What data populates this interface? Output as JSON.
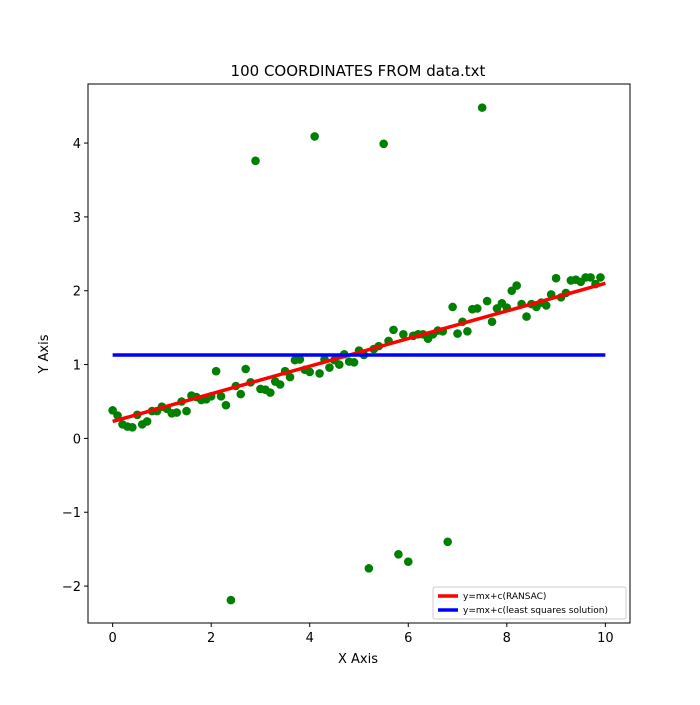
{
  "chart_data": {
    "type": "scatter",
    "title": "100 COORDINATES FROM data.txt",
    "xlabel": "X Axis",
    "ylabel": "Y Axis",
    "xlim": [
      -0.5,
      10.5
    ],
    "ylim": [
      -2.5,
      4.8
    ],
    "x_ticks": [
      0,
      2,
      4,
      6,
      8,
      10
    ],
    "y_ticks": [
      -2,
      -1,
      0,
      1,
      2,
      3,
      4
    ],
    "x_tick_labels": [
      "0",
      "2",
      "4",
      "6",
      "8",
      "10"
    ],
    "y_tick_labels": [
      "−2",
      "−1",
      "0",
      "1",
      "2",
      "3",
      "4"
    ],
    "grid": false,
    "legend_position": "lower-right",
    "point_color": "#008000",
    "points": [
      [
        0.0,
        0.38
      ],
      [
        0.1,
        0.31
      ],
      [
        0.2,
        0.19
      ],
      [
        0.3,
        0.16
      ],
      [
        0.4,
        0.15
      ],
      [
        0.5,
        0.32
      ],
      [
        0.6,
        0.19
      ],
      [
        0.7,
        0.23
      ],
      [
        0.8,
        0.37
      ],
      [
        0.9,
        0.37
      ],
      [
        1.0,
        0.43
      ],
      [
        1.1,
        0.4
      ],
      [
        1.2,
        0.34
      ],
      [
        1.3,
        0.35
      ],
      [
        1.4,
        0.5
      ],
      [
        1.5,
        0.37
      ],
      [
        1.6,
        0.58
      ],
      [
        1.7,
        0.56
      ],
      [
        1.8,
        0.52
      ],
      [
        1.9,
        0.53
      ],
      [
        2.0,
        0.57
      ],
      [
        2.1,
        0.91
      ],
      [
        2.2,
        0.57
      ],
      [
        2.3,
        0.45
      ],
      [
        2.4,
        -2.19
      ],
      [
        2.5,
        0.71
      ],
      [
        2.6,
        0.6
      ],
      [
        2.7,
        0.94
      ],
      [
        2.8,
        0.76
      ],
      [
        2.9,
        3.76
      ],
      [
        3.0,
        0.67
      ],
      [
        3.1,
        0.66
      ],
      [
        3.2,
        0.62
      ],
      [
        3.3,
        0.77
      ],
      [
        3.4,
        0.73
      ],
      [
        3.5,
        0.91
      ],
      [
        3.6,
        0.83
      ],
      [
        3.7,
        1.06
      ],
      [
        3.8,
        1.07
      ],
      [
        3.9,
        0.93
      ],
      [
        4.0,
        0.9
      ],
      [
        4.1,
        4.09
      ],
      [
        4.2,
        0.88
      ],
      [
        4.3,
        1.07
      ],
      [
        4.4,
        0.96
      ],
      [
        4.5,
        1.06
      ],
      [
        4.6,
        1.0
      ],
      [
        4.7,
        1.14
      ],
      [
        4.8,
        1.04
      ],
      [
        4.9,
        1.03
      ],
      [
        5.0,
        1.19
      ],
      [
        5.1,
        1.13
      ],
      [
        5.2,
        -1.76
      ],
      [
        5.3,
        1.21
      ],
      [
        5.4,
        1.25
      ],
      [
        5.5,
        3.99
      ],
      [
        5.6,
        1.32
      ],
      [
        5.7,
        1.47
      ],
      [
        5.8,
        -1.57
      ],
      [
        5.9,
        1.41
      ],
      [
        6.0,
        -1.67
      ],
      [
        6.1,
        1.39
      ],
      [
        6.2,
        1.41
      ],
      [
        6.3,
        1.41
      ],
      [
        6.4,
        1.35
      ],
      [
        6.5,
        1.41
      ],
      [
        6.6,
        1.46
      ],
      [
        6.7,
        1.45
      ],
      [
        6.8,
        -1.4
      ],
      [
        6.9,
        1.78
      ],
      [
        7.0,
        1.42
      ],
      [
        7.1,
        1.58
      ],
      [
        7.2,
        1.45
      ],
      [
        7.3,
        1.75
      ],
      [
        7.4,
        1.76
      ],
      [
        7.5,
        4.48
      ],
      [
        7.6,
        1.86
      ],
      [
        7.7,
        1.58
      ],
      [
        7.8,
        1.76
      ],
      [
        7.9,
        1.83
      ],
      [
        8.0,
        1.77
      ],
      [
        8.1,
        2.0
      ],
      [
        8.2,
        2.07
      ],
      [
        8.3,
        1.82
      ],
      [
        8.4,
        1.65
      ],
      [
        8.5,
        1.82
      ],
      [
        8.6,
        1.78
      ],
      [
        8.7,
        1.84
      ],
      [
        8.8,
        1.8
      ],
      [
        8.9,
        1.95
      ],
      [
        9.0,
        2.17
      ],
      [
        9.1,
        1.91
      ],
      [
        9.2,
        1.97
      ],
      [
        9.3,
        2.14
      ],
      [
        9.4,
        2.15
      ],
      [
        9.5,
        2.12
      ],
      [
        9.6,
        2.18
      ],
      [
        9.7,
        2.18
      ],
      [
        9.8,
        2.09
      ],
      [
        9.9,
        2.18
      ]
    ],
    "lines": [
      {
        "name": "y=mx+c(RANSAC)",
        "color": "#ff0000",
        "x": [
          0,
          10
        ],
        "y": [
          0.23,
          2.1
        ]
      },
      {
        "name": "y=mx+c(least squares solution)",
        "color": "#0000ff",
        "x": [
          0,
          10
        ],
        "y": [
          1.13,
          1.13
        ]
      }
    ]
  }
}
